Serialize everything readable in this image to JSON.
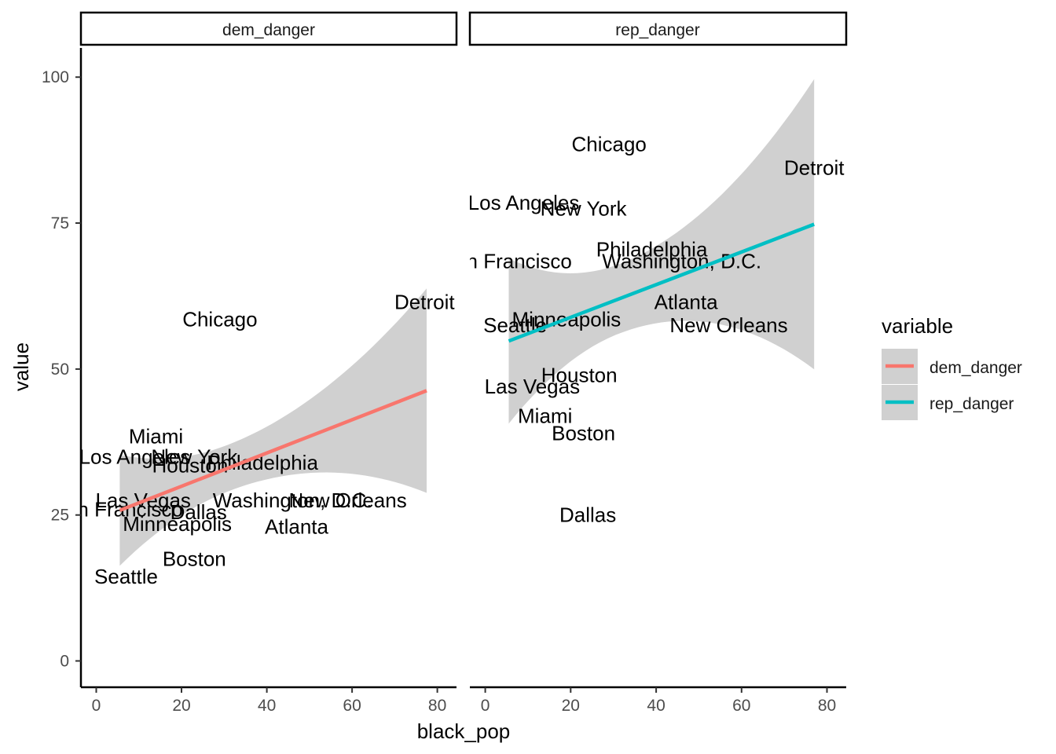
{
  "chart_data": {
    "type": "scatter",
    "xlabel": "black_pop",
    "ylabel": "value",
    "xlim": [
      -3.6,
      84.5
    ],
    "ylim": [
      -4.5,
      105
    ],
    "x_ticks": [
      0,
      20,
      40,
      60,
      80
    ],
    "y_ticks": [
      0,
      25,
      50,
      75,
      100
    ],
    "x_tick_labels": [
      "0",
      "20",
      "40",
      "60",
      "80"
    ],
    "y_tick_labels": [
      "0",
      "25",
      "50",
      "75",
      "100"
    ],
    "grid": false,
    "legend": {
      "title": "variable",
      "placement": "right",
      "entries": [
        "dem_danger",
        "rep_danger"
      ]
    },
    "panels": [
      {
        "strip": "dem_danger",
        "series": "dem_danger",
        "color": "#F8766D",
        "points": [
          {
            "label": "Chicago",
            "x": 29,
            "y": 58.5
          },
          {
            "label": "Detroit",
            "x": 77,
            "y": 61.5
          },
          {
            "label": "Miami",
            "x": 14,
            "y": 38.5
          },
          {
            "label": "Los Angeles",
            "x": 9,
            "y": 35
          },
          {
            "label": "New York",
            "x": 23,
            "y": 35
          },
          {
            "label": "Philadelphia",
            "x": 39,
            "y": 34
          },
          {
            "label": "Houston",
            "x": 22,
            "y": 33.5
          },
          {
            "label": "Las Vegas",
            "x": 11,
            "y": 27.5
          },
          {
            "label": "Washington, D.C.",
            "x": 46,
            "y": 27.5
          },
          {
            "label": "New Orleans",
            "x": 59,
            "y": 27.5
          },
          {
            "label": "San Francisco",
            "x": 5,
            "y": 26
          },
          {
            "label": "Dallas",
            "x": 24,
            "y": 25.5
          },
          {
            "label": "Minneapolis",
            "x": 19,
            "y": 23.5
          },
          {
            "label": "Atlanta",
            "x": 47,
            "y": 23
          },
          {
            "label": "Boston",
            "x": 23,
            "y": 17.5
          },
          {
            "label": "Seattle",
            "x": 7,
            "y": 14.5
          }
        ],
        "fit": {
          "x": [
            5.5,
            77.5
          ],
          "y": [
            25.8,
            46.3
          ],
          "ci_low": [
            16.3,
            28.8
          ],
          "ci_high": [
            35.3,
            63.8
          ]
        }
      },
      {
        "strip": "rep_danger",
        "series": "rep_danger",
        "color": "#00BFC4",
        "points": [
          {
            "label": "Chicago",
            "x": 29,
            "y": 88.5
          },
          {
            "label": "Detroit",
            "x": 77,
            "y": 84.5
          },
          {
            "label": "Los Angeles",
            "x": 9,
            "y": 78.5
          },
          {
            "label": "New York",
            "x": 23,
            "y": 77.5
          },
          {
            "label": "Philadelphia",
            "x": 39,
            "y": 70.5
          },
          {
            "label": "San Francisco",
            "x": 5,
            "y": 68.5
          },
          {
            "label": "Washington, D.C.",
            "x": 46,
            "y": 68.5
          },
          {
            "label": "Atlanta",
            "x": 47,
            "y": 61.5
          },
          {
            "label": "Minneapolis",
            "x": 19,
            "y": 58.5
          },
          {
            "label": "Seattle",
            "x": 7,
            "y": 57.5
          },
          {
            "label": "New Orleans",
            "x": 57,
            "y": 57.5
          },
          {
            "label": "Houston",
            "x": 22,
            "y": 49
          },
          {
            "label": "Las Vegas",
            "x": 11,
            "y": 47
          },
          {
            "label": "Miami",
            "x": 14,
            "y": 42
          },
          {
            "label": "Boston",
            "x": 23,
            "y": 39
          },
          {
            "label": "Dallas",
            "x": 24,
            "y": 25
          }
        ],
        "fit": {
          "x": [
            5.5,
            77
          ],
          "y": [
            54.8,
            74.8
          ],
          "ci_low": [
            40.5,
            49.8
          ],
          "ci_high": [
            68.8,
            99.5
          ]
        }
      }
    ]
  }
}
